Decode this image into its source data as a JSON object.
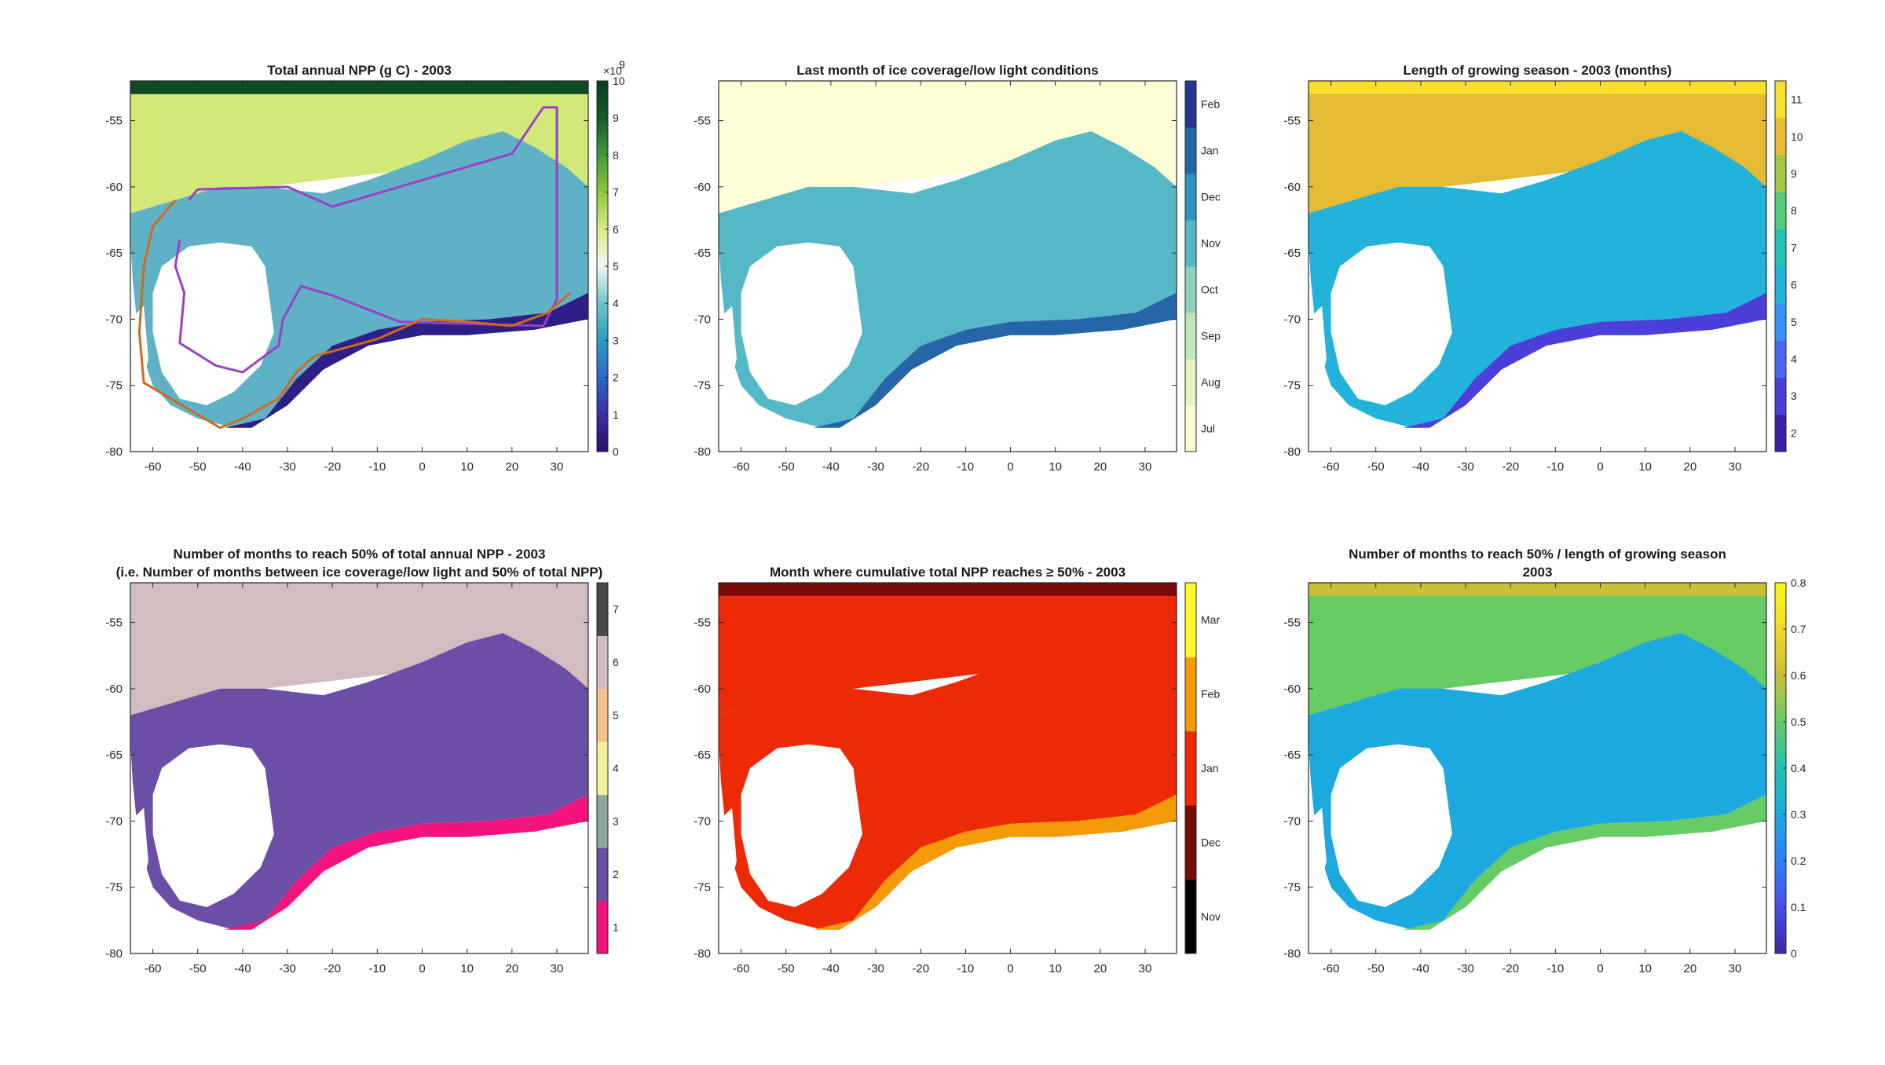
{
  "figure": {
    "panels": [
      {
        "id": "npp_total",
        "title_lines": [
          "Total annual NPP (g C) - 2003"
        ],
        "colorbar": {
          "type": "continuous",
          "min": 0,
          "max": 10,
          "ticks": [
            "0",
            "1",
            "2",
            "3",
            "4",
            "5",
            "6",
            "7",
            "8",
            "9",
            "10"
          ],
          "exponent_label": "×10",
          "exponent_power": "9",
          "colors": [
            "#2a0e6e",
            "#3b2fa3",
            "#2f66c9",
            "#2a9bc4",
            "#6cc5c7",
            "#f2f7f3",
            "#d7eb86",
            "#8ec73d",
            "#3f9a3a",
            "#135c2a",
            "#063f1c"
          ]
        },
        "map": {
          "ocean_color": "#5fb2c6",
          "north_band_color": "#d2e879",
          "top_band_color": "#0d4a25",
          "coast_color": "#2d1f86",
          "overlays": [
            {
              "color": "#9b3fc7"
            },
            {
              "color": "#d06a1c"
            }
          ]
        }
      },
      {
        "id": "last_ice_month",
        "title_lines": [
          "Last month of ice coverage/low light conditions"
        ],
        "colorbar": {
          "type": "categorical",
          "labels": [
            "Jul",
            "Aug",
            "Sep",
            "Oct",
            "Nov",
            "Dec",
            "Jan",
            "Feb"
          ],
          "colors": [
            "#fefed6",
            "#e4f4c2",
            "#c2e6b9",
            "#8dd2bd",
            "#55b8c6",
            "#2f91bf",
            "#2566a9",
            "#25348f"
          ]
        },
        "map": {
          "ocean_color": "#55b8c6",
          "north_band_color": "#fefed6",
          "top_band_color": "#fefed6",
          "coast_color": "#2566a9",
          "overlays": []
        }
      },
      {
        "id": "growing_season",
        "title_lines": [
          "Length of growing season - 2003 (months)"
        ],
        "colorbar": {
          "type": "categorical",
          "labels": [
            "2",
            "3",
            "4",
            "5",
            "6",
            "7",
            "8",
            "9",
            "10",
            "11"
          ],
          "colors": [
            "#3a1fa6",
            "#4a3fd8",
            "#4a68f3",
            "#3990f6",
            "#22b3da",
            "#21c2b2",
            "#55c97e",
            "#a1c643",
            "#e6bb34",
            "#f8e02a"
          ]
        },
        "map": {
          "ocean_color": "#22b3da",
          "north_band_color": "#e6bb34",
          "top_band_color": "#f8e02a",
          "coast_color": "#4a3fd8",
          "overlays": []
        }
      },
      {
        "id": "months_to_half",
        "title_lines": [
          "Number of months to reach 50% of total annual NPP - 2003",
          "(i.e. Number of months between ice coverage/low light and 50% of total NPP)"
        ],
        "colorbar": {
          "type": "categorical",
          "labels": [
            "1",
            "2",
            "3",
            "4",
            "5",
            "6",
            "7"
          ],
          "colors": [
            "#f2137f",
            "#6b4fa6",
            "#8fa79b",
            "#f6f29a",
            "#f6c08c",
            "#d3bcbf",
            "#4a4a4a"
          ]
        },
        "map": {
          "ocean_color": "#6b4fa6",
          "north_band_color": "#d3bcbf",
          "top_band_color": "#d3bcbf",
          "coast_color": "#f2137f",
          "overlays": []
        }
      },
      {
        "id": "month_half",
        "title_lines": [
          "Month where cumulative total NPP reaches ≥ 50% - 2003"
        ],
        "colorbar": {
          "type": "categorical",
          "labels": [
            "Nov",
            "Dec",
            "Jan",
            "Feb",
            "Mar"
          ],
          "colors": [
            "#000000",
            "#7a0a08",
            "#ee2a06",
            "#f59a09",
            "#fdfd2c"
          ]
        },
        "map": {
          "ocean_color": "#ee2a06",
          "north_band_color": "#ee2a06",
          "top_band_color": "#7a0a08",
          "coast_color": "#f59a09",
          "overlays": []
        }
      },
      {
        "id": "ratio",
        "title_lines": [
          "Number of months to reach 50% / length of growing season",
          "2003"
        ],
        "colorbar": {
          "type": "continuous",
          "min": 0,
          "max": 0.8,
          "ticks": [
            "0",
            "0.1",
            "0.2",
            "0.3",
            "0.4",
            "0.5",
            "0.6",
            "0.7",
            "0.8"
          ],
          "colors": [
            "#3e26a8",
            "#4450e8",
            "#2d7ff9",
            "#1ca9df",
            "#21c1b3",
            "#67cb66",
            "#c7bf36",
            "#f5d825",
            "#f9fb15"
          ]
        },
        "map": {
          "ocean_color": "#1ca9df",
          "north_band_color": "#67cb66",
          "top_band_color": "#c7bf36",
          "coast_color": "#67cb66",
          "overlays": []
        }
      }
    ]
  },
  "chart_data": [
    {
      "type": "heatmap",
      "title": "Total annual NPP (g C) - 2003",
      "xlim": [
        -65,
        37
      ],
      "ylim": [
        -80,
        -52
      ],
      "x_ticks": [
        -60,
        -50,
        -40,
        -30,
        -20,
        -10,
        0,
        10,
        20,
        30
      ],
      "y_ticks": [
        -55,
        -60,
        -65,
        -70,
        -75,
        -80
      ],
      "colorbar_range": [
        0,
        10
      ],
      "colorbar_ticks": [
        0,
        1,
        2,
        3,
        4,
        5,
        6,
        7,
        8,
        9,
        10
      ],
      "colorbar_scale": "×10^9",
      "lines": [
        {
          "color": "purple",
          "points": [
            [
              -52,
              -61
            ],
            [
              -50,
              -60.2
            ],
            [
              -30,
              -60
            ],
            [
              -20,
              -61.5
            ],
            [
              20,
              -57.5
            ],
            [
              27,
              -54
            ],
            [
              30,
              -54
            ],
            [
              30,
              -68.5
            ],
            [
              27,
              -70.5
            ],
            [
              -5,
              -70.2
            ],
            [
              -20,
              -68.2
            ],
            [
              -27,
              -67.5
            ],
            [
              -31,
              -70
            ],
            [
              -32,
              -72
            ],
            [
              -40,
              -74
            ],
            [
              -46,
              -73.5
            ],
            [
              -54,
              -71.8
            ],
            [
              -53,
              -68
            ],
            [
              -55,
              -66
            ],
            [
              -54,
              -64
            ]
          ]
        },
        {
          "color": "orange",
          "points": [
            [
              -55,
              -61
            ],
            [
              -60,
              -63
            ],
            [
              -62,
              -66
            ],
            [
              -63,
              -71
            ],
            [
              -62,
              -74.8
            ],
            [
              -45,
              -78.2
            ],
            [
              -40,
              -77.5
            ],
            [
              -32,
              -76
            ],
            [
              -28,
              -74
            ],
            [
              -24,
              -72.8
            ],
            [
              -10,
              -71.5
            ],
            [
              0,
              -70
            ],
            [
              10,
              -70.2
            ],
            [
              20,
              -70.5
            ],
            [
              28,
              -69.5
            ],
            [
              33,
              -68
            ]
          ]
        }
      ]
    },
    {
      "type": "heatmap",
      "title": "Last month of ice coverage/low light conditions",
      "xlim": [
        -65,
        37
      ],
      "ylim": [
        -80,
        -52
      ],
      "x_ticks": [
        -60,
        -50,
        -40,
        -30,
        -20,
        -10,
        0,
        10,
        20,
        30
      ],
      "y_ticks": [
        -55,
        -60,
        -65,
        -70,
        -75,
        -80
      ],
      "categories": [
        "Jul",
        "Aug",
        "Sep",
        "Oct",
        "Nov",
        "Dec",
        "Jan",
        "Feb"
      ]
    },
    {
      "type": "heatmap",
      "title": "Length of growing season - 2003 (months)",
      "xlim": [
        -65,
        37
      ],
      "ylim": [
        -80,
        -52
      ],
      "x_ticks": [
        -60,
        -50,
        -40,
        -30,
        -20,
        -10,
        0,
        10,
        20,
        30
      ],
      "y_ticks": [
        -55,
        -60,
        -65,
        -70,
        -75,
        -80
      ],
      "categories": [
        2,
        3,
        4,
        5,
        6,
        7,
        8,
        9,
        10,
        11
      ]
    },
    {
      "type": "heatmap",
      "title": "Number of months to reach 50% of total annual NPP - 2003 (i.e. Number of months between ice coverage/low light and 50% of total NPP)",
      "xlim": [
        -65,
        37
      ],
      "ylim": [
        -80,
        -52
      ],
      "x_ticks": [
        -60,
        -50,
        -40,
        -30,
        -20,
        -10,
        0,
        10,
        20,
        30
      ],
      "y_ticks": [
        -55,
        -60,
        -65,
        -70,
        -75,
        -80
      ],
      "categories": [
        1,
        2,
        3,
        4,
        5,
        6,
        7
      ]
    },
    {
      "type": "heatmap",
      "title": "Month where cumulative total NPP reaches ≥ 50% - 2003",
      "xlim": [
        -65,
        37
      ],
      "ylim": [
        -80,
        -52
      ],
      "x_ticks": [
        -60,
        -50,
        -40,
        -30,
        -20,
        -10,
        0,
        10,
        20,
        30
      ],
      "y_ticks": [
        -55,
        -60,
        -65,
        -70,
        -75,
        -80
      ],
      "categories": [
        "Nov",
        "Dec",
        "Jan",
        "Feb",
        "Mar"
      ]
    },
    {
      "type": "heatmap",
      "title": "Number of months to reach 50% / length of growing season 2003",
      "xlim": [
        -65,
        37
      ],
      "ylim": [
        -80,
        -52
      ],
      "x_ticks": [
        -60,
        -50,
        -40,
        -30,
        -20,
        -10,
        0,
        10,
        20,
        30
      ],
      "y_ticks": [
        -55,
        -60,
        -65,
        -70,
        -75,
        -80
      ],
      "colorbar_range": [
        0,
        0.8
      ],
      "colorbar_ticks": [
        0,
        0.1,
        0.2,
        0.3,
        0.4,
        0.5,
        0.6,
        0.7,
        0.8
      ]
    }
  ]
}
